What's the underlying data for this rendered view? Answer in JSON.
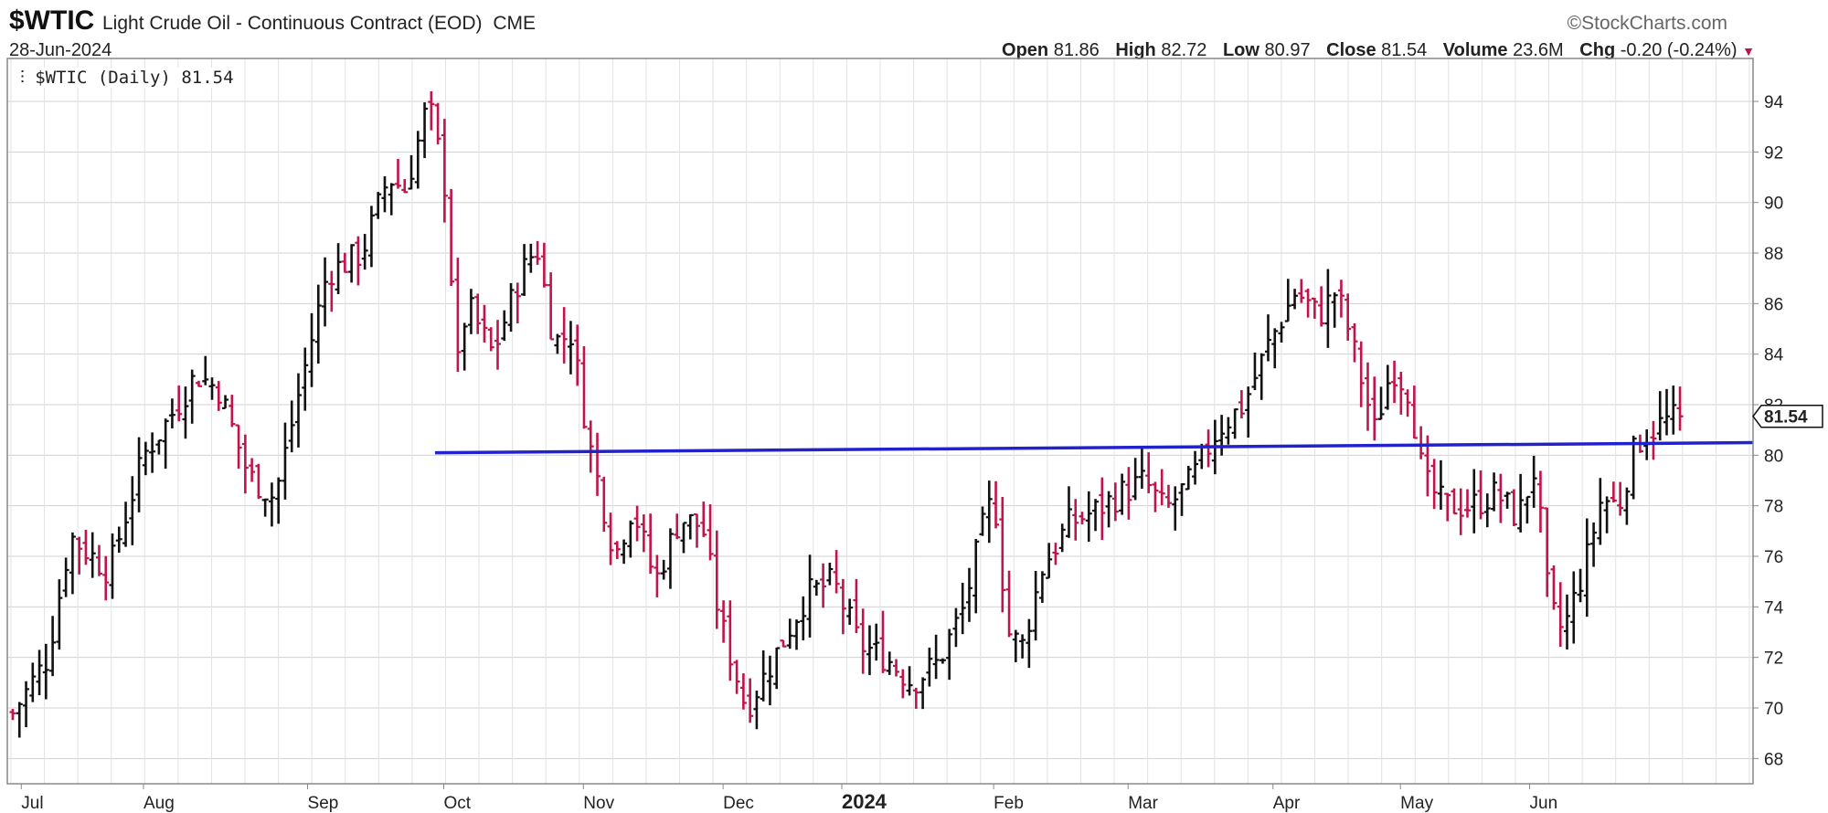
{
  "header": {
    "symbol": "$WTIC",
    "description": "Light Crude Oil - Continuous Contract (EOD)",
    "exchange": "CME",
    "date": "28-Jun-2024",
    "brand": "StockCharts.com",
    "legend": "$WTIC (Daily) 81.54",
    "open_label": "Open",
    "open": "81.86",
    "high_label": "High",
    "high": "82.72",
    "low_label": "Low",
    "low": "80.97",
    "close_label": "Close",
    "close": "81.54",
    "volume_label": "Volume",
    "volume": "23.6M",
    "chg_label": "Chg",
    "chg": "-0.20 (-0.24%)"
  },
  "colors": {
    "up": "#111111",
    "down": "#c0144a",
    "grid": "#d0d0d0",
    "trendline": "#2222cc"
  },
  "chart_data": {
    "type": "ohlc",
    "y_ticks": [
      68,
      70,
      72,
      74,
      76,
      78,
      80,
      82,
      84,
      86,
      88,
      90,
      92,
      94
    ],
    "ylim": [
      67.0,
      95.7
    ],
    "x_labels": [
      "Jul",
      "Aug",
      "Sep",
      "Oct",
      "Nov",
      "Dec",
      "2024",
      "Feb",
      "Mar",
      "Apr",
      "May",
      "Jun"
    ],
    "x_label_bold": "2024",
    "last_price_label": "81.54",
    "trendline": {
      "x_start": 0.245,
      "y_start": 80.1,
      "x_end": 1.0,
      "y_end": 80.5
    },
    "anchors": [
      [
        0.0,
        69.8
      ],
      [
        0.02,
        72.0
      ],
      [
        0.033,
        76.8
      ],
      [
        0.055,
        75.4
      ],
      [
        0.075,
        80.0
      ],
      [
        0.09,
        81.5
      ],
      [
        0.105,
        83.2
      ],
      [
        0.118,
        82.6
      ],
      [
        0.135,
        79.2
      ],
      [
        0.15,
        78.3
      ],
      [
        0.165,
        82.8
      ],
      [
        0.18,
        87.2
      ],
      [
        0.2,
        88.0
      ],
      [
        0.215,
        91.0
      ],
      [
        0.225,
        90.5
      ],
      [
        0.238,
        94.0
      ],
      [
        0.247,
        91.0
      ],
      [
        0.255,
        83.5
      ],
      [
        0.26,
        86.0
      ],
      [
        0.275,
        84.0
      ],
      [
        0.29,
        87.0
      ],
      [
        0.3,
        88.3
      ],
      [
        0.31,
        84.5
      ],
      [
        0.32,
        84.8
      ],
      [
        0.33,
        80.5
      ],
      [
        0.345,
        76.0
      ],
      [
        0.355,
        78.0
      ],
      [
        0.368,
        75.0
      ],
      [
        0.382,
        77.5
      ],
      [
        0.395,
        77.2
      ],
      [
        0.405,
        73.5
      ],
      [
        0.42,
        70.0
      ],
      [
        0.43,
        71.2
      ],
      [
        0.44,
        72.5
      ],
      [
        0.455,
        74.5
      ],
      [
        0.47,
        75.0
      ],
      [
        0.485,
        72.5
      ],
      [
        0.5,
        72.0
      ],
      [
        0.515,
        71.0
      ],
      [
        0.53,
        71.8
      ],
      [
        0.545,
        74.0
      ],
      [
        0.555,
        77.0
      ],
      [
        0.562,
        78.5
      ],
      [
        0.57,
        73.0
      ],
      [
        0.578,
        72.4
      ],
      [
        0.59,
        75.6
      ],
      [
        0.605,
        77.3
      ],
      [
        0.62,
        77.8
      ],
      [
        0.635,
        78.5
      ],
      [
        0.648,
        79.0
      ],
      [
        0.66,
        77.8
      ],
      [
        0.675,
        79.0
      ],
      [
        0.69,
        81.0
      ],
      [
        0.705,
        82.0
      ],
      [
        0.72,
        84.5
      ],
      [
        0.735,
        86.5
      ],
      [
        0.748,
        85.5
      ],
      [
        0.758,
        86.5
      ],
      [
        0.765,
        85.0
      ],
      [
        0.78,
        81.0
      ],
      [
        0.79,
        83.5
      ],
      [
        0.8,
        82.5
      ],
      [
        0.808,
        79.0
      ],
      [
        0.82,
        78.0
      ],
      [
        0.835,
        78.0
      ],
      [
        0.85,
        78.5
      ],
      [
        0.862,
        77.5
      ],
      [
        0.872,
        79.5
      ],
      [
        0.88,
        74.0
      ],
      [
        0.888,
        73.0
      ],
      [
        0.9,
        75.5
      ],
      [
        0.91,
        78.3
      ],
      [
        0.92,
        78.0
      ],
      [
        0.93,
        80.5
      ],
      [
        0.945,
        81.3
      ],
      [
        0.955,
        81.54
      ]
    ],
    "last_bar": {
      "open": 81.86,
      "high": 82.72,
      "low": 80.97,
      "close": 81.54
    }
  }
}
